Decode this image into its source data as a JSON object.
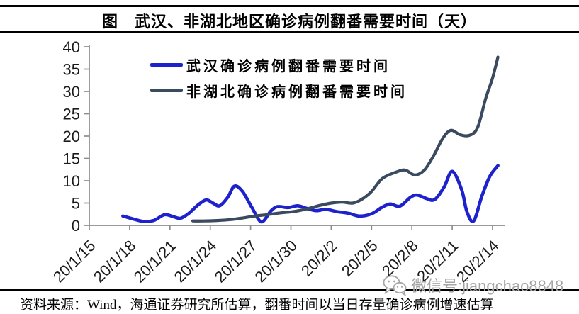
{
  "header": {
    "title": "图　武汉、非湖北地区确诊病例翻番需要时间（天）"
  },
  "chart_data": {
    "type": "line",
    "title": "武汉、非湖北地区确诊病例翻番需要时间（天）",
    "xlabel": "",
    "ylabel": "",
    "ylim": [
      0,
      40
    ],
    "y_tick_step": 5,
    "grid": false,
    "legend_position": "inside-top-left",
    "axis_color": "#8c8c8c",
    "label_color": "#1a1a1a",
    "x_tick_days": [
      0,
      3,
      6,
      9,
      12,
      15,
      18,
      21,
      24,
      27,
      30
    ],
    "x_tick_labels": [
      "20/1/15",
      "20/1/18",
      "20/1/21",
      "20/1/24",
      "20/1/27",
      "20/1/30",
      "20/2/2",
      "20/2/5",
      "20/2/8",
      "20/2/11",
      "20/2/14"
    ],
    "series": [
      {
        "name": "武汉确诊病例翻番需要时间",
        "slug": "wuhan",
        "color": "#1e22cc",
        "width": 4.6,
        "points": [
          [
            2.5,
            2.1
          ],
          [
            3.2,
            1.5
          ],
          [
            4.0,
            0.9
          ],
          [
            4.8,
            1.1
          ],
          [
            5.6,
            2.4
          ],
          [
            6.3,
            1.9
          ],
          [
            6.8,
            1.6
          ],
          [
            7.4,
            2.7
          ],
          [
            8.1,
            4.6
          ],
          [
            8.7,
            5.7
          ],
          [
            9.2,
            5.0
          ],
          [
            9.7,
            4.4
          ],
          [
            10.3,
            6.3
          ],
          [
            10.8,
            8.8
          ],
          [
            11.4,
            7.6
          ],
          [
            12.1,
            4.0
          ],
          [
            12.8,
            0.8
          ],
          [
            13.5,
            3.2
          ],
          [
            14.0,
            4.2
          ],
          [
            14.8,
            4.0
          ],
          [
            15.5,
            4.4
          ],
          [
            16.2,
            3.8
          ],
          [
            16.9,
            3.3
          ],
          [
            17.6,
            3.6
          ],
          [
            18.4,
            3.1
          ],
          [
            19.3,
            2.7
          ],
          [
            20.1,
            2.1
          ],
          [
            21.0,
            2.6
          ],
          [
            21.8,
            4.1
          ],
          [
            22.4,
            4.8
          ],
          [
            23.1,
            4.3
          ],
          [
            23.9,
            6.3
          ],
          [
            24.4,
            6.8
          ],
          [
            25.1,
            6.0
          ],
          [
            25.7,
            5.8
          ],
          [
            26.4,
            8.6
          ],
          [
            27.0,
            12.1
          ],
          [
            27.7,
            8.0
          ],
          [
            28.1,
            3.0
          ],
          [
            28.6,
            1.0
          ],
          [
            29.2,
            6.5
          ],
          [
            29.8,
            11.0
          ],
          [
            30.4,
            13.4
          ]
        ]
      },
      {
        "name": "非湖北确诊病例翻番需要时间",
        "slug": "non-hubei",
        "color": "#3a4a5f",
        "width": 4.2,
        "points": [
          [
            7.7,
            1.0
          ],
          [
            8.5,
            1.0
          ],
          [
            9.5,
            1.1
          ],
          [
            10.5,
            1.3
          ],
          [
            11.5,
            1.7
          ],
          [
            12.3,
            2.1
          ],
          [
            13.2,
            2.4
          ],
          [
            14.2,
            2.8
          ],
          [
            15.2,
            3.1
          ],
          [
            16.2,
            3.7
          ],
          [
            17.2,
            4.5
          ],
          [
            18.0,
            5.0
          ],
          [
            18.8,
            5.2
          ],
          [
            19.6,
            5.0
          ],
          [
            20.3,
            5.9
          ],
          [
            21.0,
            7.6
          ],
          [
            21.8,
            10.5
          ],
          [
            22.8,
            11.9
          ],
          [
            23.5,
            12.4
          ],
          [
            24.2,
            11.3
          ],
          [
            24.9,
            12.3
          ],
          [
            25.6,
            15.5
          ],
          [
            26.3,
            19.5
          ],
          [
            26.9,
            21.3
          ],
          [
            27.6,
            20.3
          ],
          [
            28.3,
            20.2
          ],
          [
            28.9,
            22.0
          ],
          [
            29.5,
            28.5
          ],
          [
            30.0,
            33.0
          ],
          [
            30.4,
            37.7
          ]
        ]
      }
    ]
  },
  "watermark": {
    "text": "微信号:jiangchao8848",
    "icon": "wechat-icon",
    "color": "#a5a5a5"
  },
  "footer": {
    "source_text": "资料来源：Wind，海通证券研究所估算，翻番时间以当日存量确诊病例增速估算"
  }
}
